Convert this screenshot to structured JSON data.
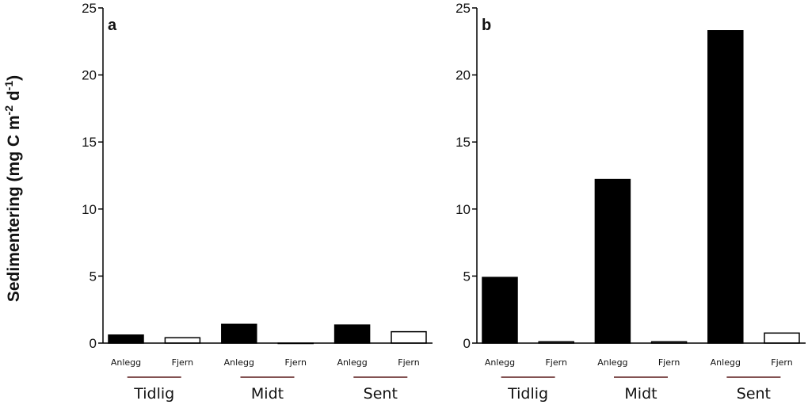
{
  "ylabel": {
    "main": "Sedimentering (mg C m",
    "sup1": "-2",
    "mid": " d",
    "sup2": "-1",
    "end": ")"
  },
  "colors": {
    "anlegg_fill": "#000000",
    "fjern_fill": "#ffffff",
    "axis": "#000000",
    "group_line": "#5a1818"
  },
  "chart_data": [
    {
      "type": "bar",
      "panel_label": "a",
      "ylim": [
        0,
        25
      ],
      "yticks": [
        0,
        5,
        10,
        15,
        20,
        25
      ],
      "grid": false,
      "categories": [
        "Anlegg",
        "Fjern",
        "Anlegg",
        "Fjern",
        "Anlegg",
        "Fjern"
      ],
      "groups": [
        "Tidlig",
        "Midt",
        "Sent"
      ],
      "values": [
        0.6,
        0.4,
        1.4,
        0,
        1.35,
        0.85
      ]
    },
    {
      "type": "bar",
      "panel_label": "b",
      "ylim": [
        0,
        25
      ],
      "yticks": [
        0,
        5,
        10,
        15,
        20,
        25
      ],
      "grid": false,
      "categories": [
        "Anlegg",
        "Fjern",
        "Anlegg",
        "Fjern",
        "Anlegg",
        "Fjern"
      ],
      "groups": [
        "Tidlig",
        "Midt",
        "Sent"
      ],
      "values": [
        4.9,
        0.1,
        12.2,
        0.1,
        23.3,
        0.75
      ]
    }
  ]
}
